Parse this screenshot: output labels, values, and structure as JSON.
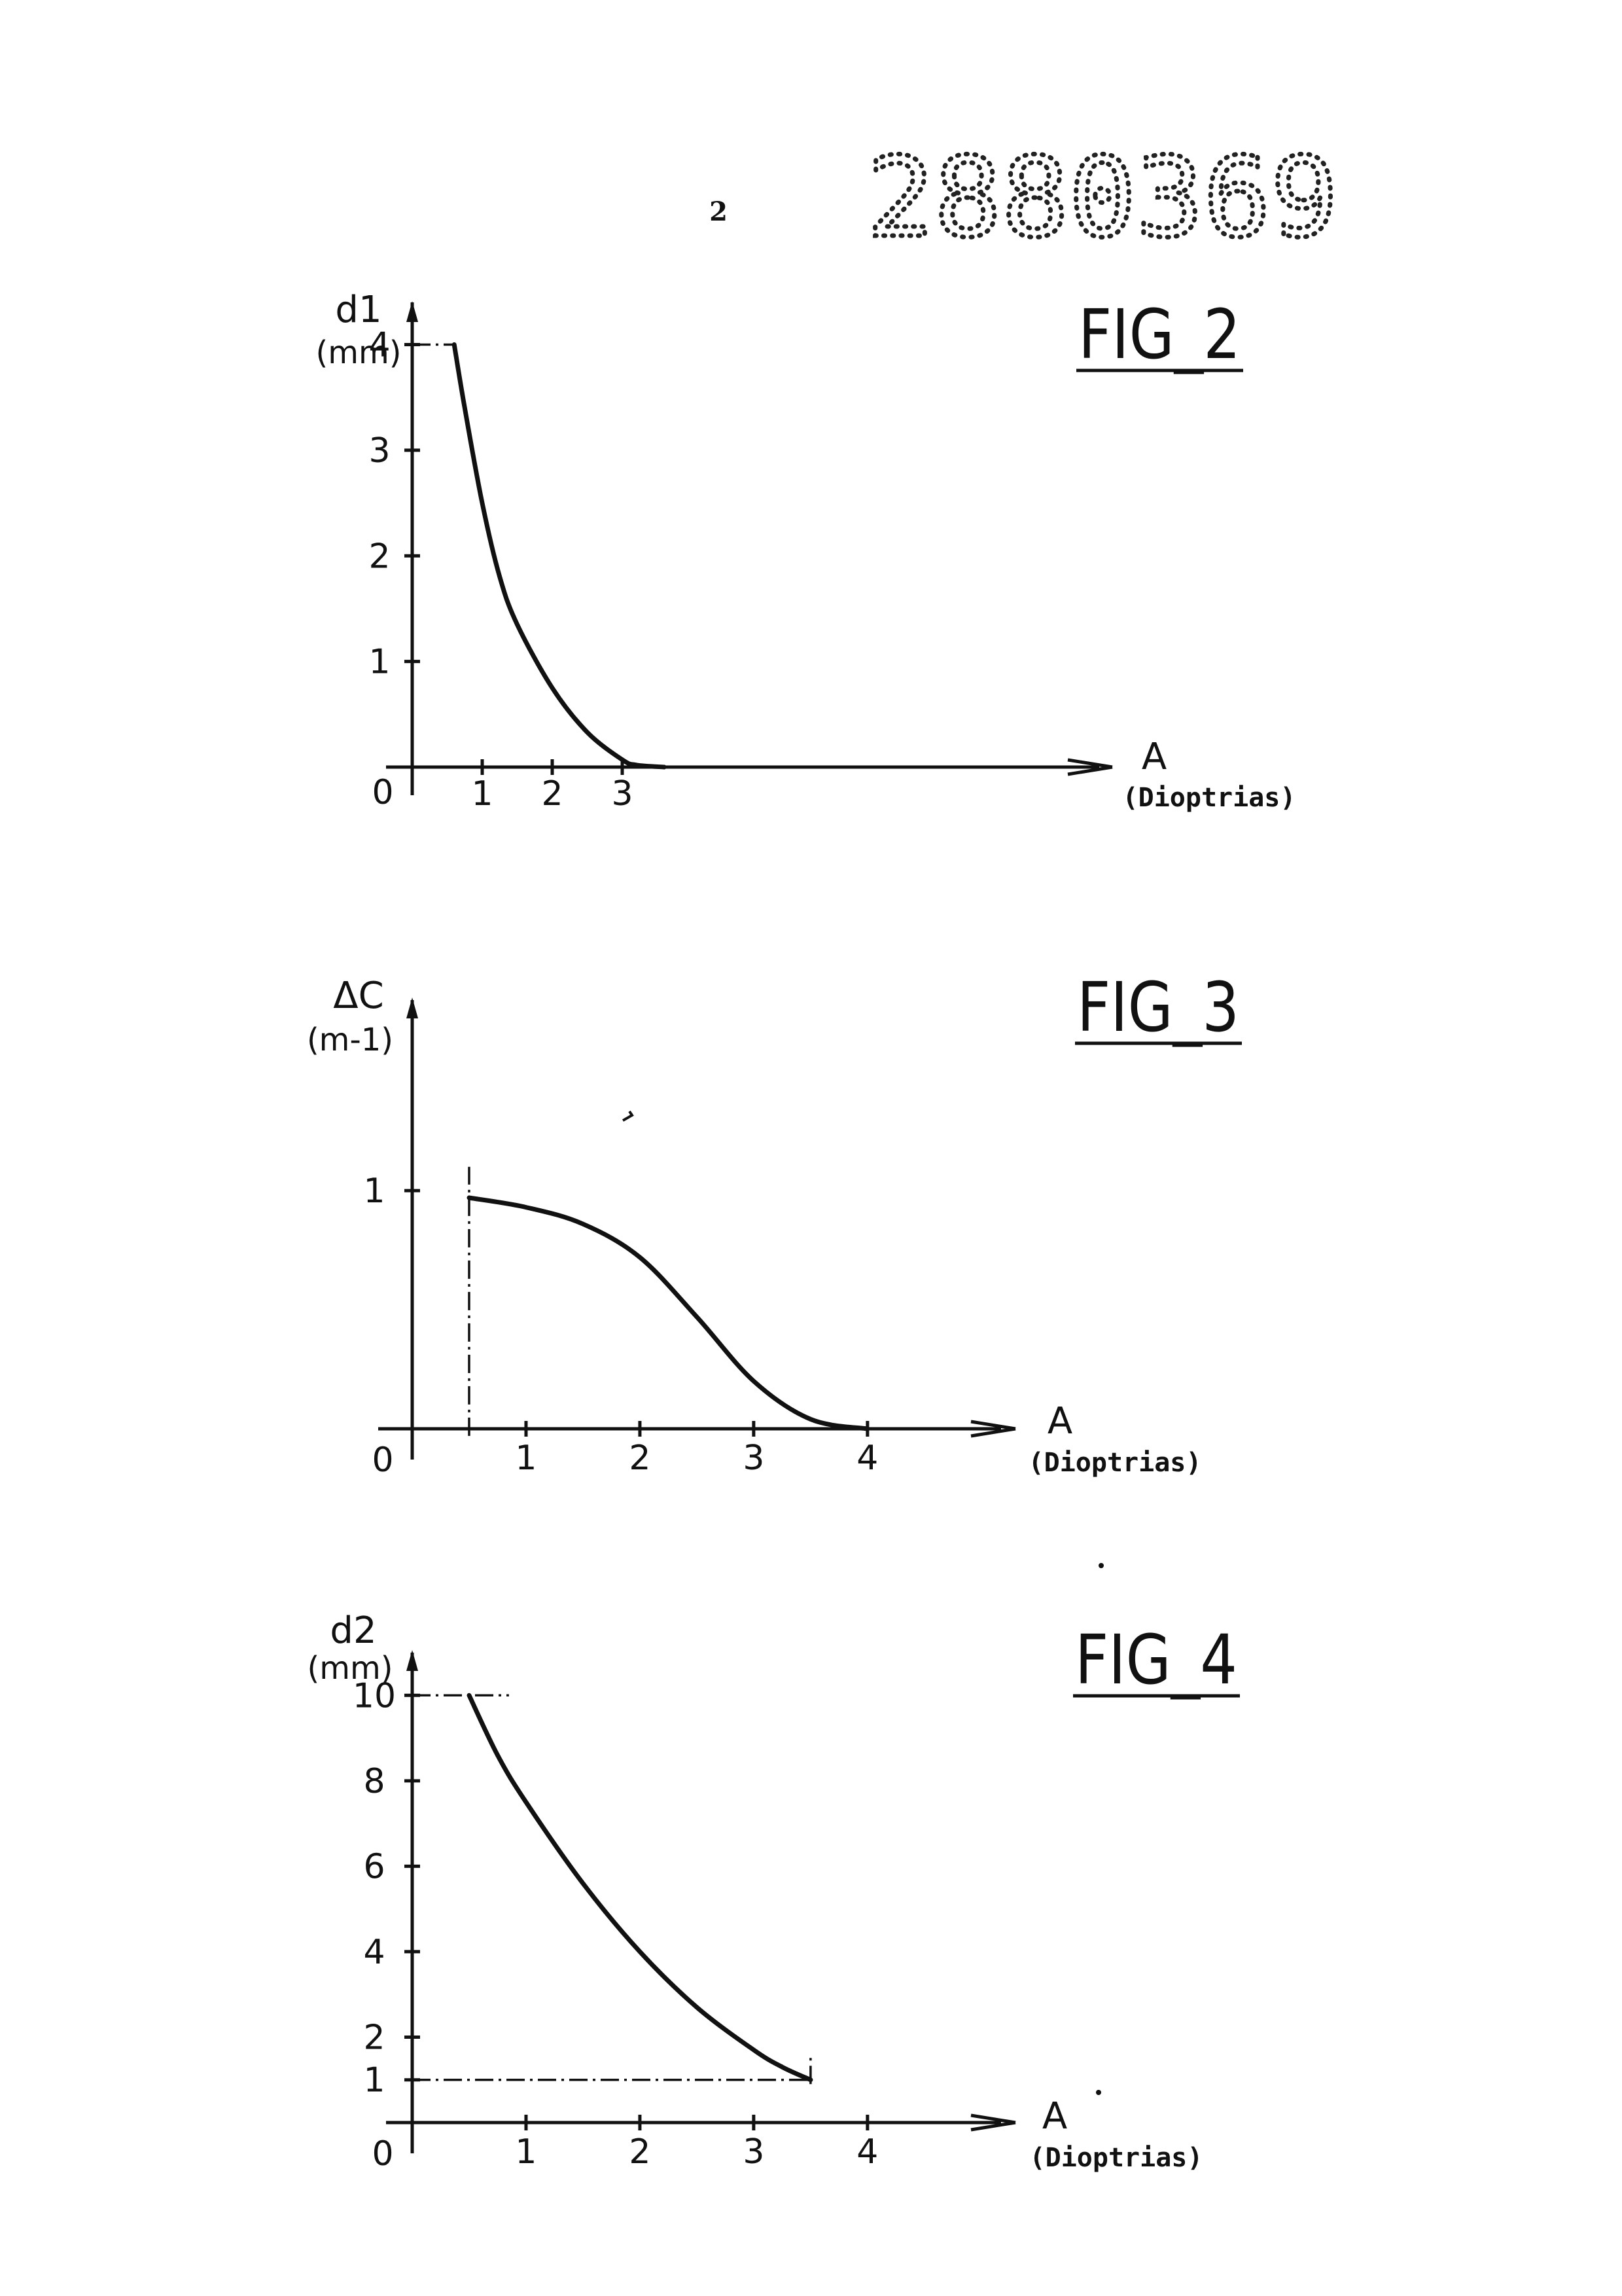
{
  "page": {
    "page_number": "2",
    "document_number": "2880369"
  },
  "chart_data": [
    {
      "type": "line",
      "figure_label": "FIG_2",
      "ylabel": "d1",
      "yunit": "(mm)",
      "xlabel": "A",
      "xunit": "(Dioptrias)",
      "origin_label": "0",
      "x_ticks": [
        "1",
        "2",
        "3"
      ],
      "y_ticks": [
        "1",
        "2",
        "3",
        "4"
      ],
      "xlim": [
        0,
        10
      ],
      "ylim": [
        0,
        4.4
      ],
      "series": [
        {
          "x": [
            0.6,
            0.75,
            1.0,
            1.25,
            1.5,
            2.0,
            2.5,
            3.0,
            3.2,
            3.6
          ],
          "y": [
            4.0,
            3.4,
            2.5,
            1.8,
            1.35,
            0.75,
            0.33,
            0.07,
            0.02,
            0.0
          ]
        }
      ],
      "reference_lines": [
        {
          "kind": "horizontal",
          "y": 4,
          "x_from": 0,
          "x_to": 0.6
        }
      ]
    },
    {
      "type": "line",
      "figure_label": "FIG_3",
      "ylabel": "ΔC",
      "yunit": "(m-1)",
      "xlabel": "A",
      "xunit": "(Dioptrias)",
      "origin_label": "0",
      "x_ticks": [
        "1",
        "2",
        "3",
        "4"
      ],
      "y_ticks": [
        "1"
      ],
      "xlim": [
        0,
        5.3
      ],
      "ylim": [
        0,
        1.8
      ],
      "series": [
        {
          "x": [
            0.5,
            1.0,
            1.5,
            2.0,
            2.5,
            3.0,
            3.5,
            4.0
          ],
          "y": [
            0.97,
            0.93,
            0.86,
            0.72,
            0.47,
            0.2,
            0.04,
            0.0
          ]
        }
      ],
      "reference_lines": [
        {
          "kind": "vertical",
          "x": 0.5,
          "y_from": -0.03,
          "y_to": 1.1
        }
      ]
    },
    {
      "type": "line",
      "figure_label": "FIG_4",
      "ylabel": "d2",
      "yunit": "(mm)",
      "xlabel": "A",
      "xunit": "(Dioptrias)",
      "origin_label": "0",
      "x_ticks": [
        "1",
        "2",
        "3",
        "4"
      ],
      "y_ticks": [
        "1",
        "2",
        "4",
        "6",
        "8",
        "10"
      ],
      "xlim": [
        0,
        5.3
      ],
      "ylim": [
        0,
        11
      ],
      "series": [
        {
          "x": [
            0.5,
            0.75,
            1.0,
            1.5,
            2.0,
            2.5,
            3.0,
            3.25,
            3.5
          ],
          "y": [
            10.0,
            8.6,
            7.5,
            5.6,
            4.0,
            2.7,
            1.7,
            1.3,
            1.0
          ]
        }
      ],
      "reference_lines": [
        {
          "kind": "horizontal",
          "y": 10,
          "x_from": 0,
          "x_to": 0.85
        },
        {
          "kind": "horizontal",
          "y": 1,
          "x_from": 0,
          "x_to": 3.5
        },
        {
          "kind": "vertical",
          "x": 3.5,
          "y_from": 0.9,
          "y_to": 1.6
        }
      ]
    }
  ]
}
